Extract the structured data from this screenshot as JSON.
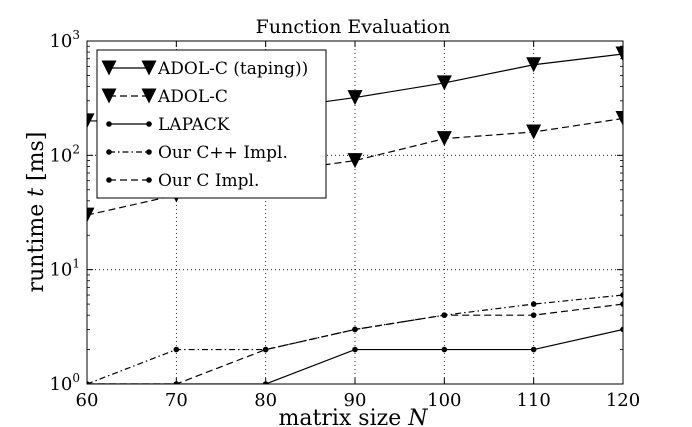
{
  "chart_data": {
    "type": "line",
    "title": "Function Evaluation",
    "xlabel": "matrix size N",
    "xlabel_main": "matrix size ",
    "xlabel_var": "N",
    "ylabel": "runtime t [ms]",
    "ylabel_pre": "runtime ",
    "ylabel_var": "t",
    "ylabel_post": " [ms]",
    "xlim": [
      60,
      120
    ],
    "ylim": [
      1,
      1000
    ],
    "yscale": "log",
    "grid": true,
    "legend_position": "top-left",
    "x": [
      60,
      70,
      80,
      90,
      100,
      110,
      120
    ],
    "x_ticks": [
      "60",
      "70",
      "80",
      "90",
      "100",
      "110",
      "120"
    ],
    "y_ticks": [
      {
        "base": "10",
        "exp": "0",
        "value": 1
      },
      {
        "base": "10",
        "exp": "1",
        "value": 10
      },
      {
        "base": "10",
        "exp": "2",
        "value": 100
      },
      {
        "base": "10",
        "exp": "3",
        "value": 1000
      }
    ],
    "series": [
      {
        "name": "ADOL-C (taping))",
        "marker": "triangle-down",
        "dash": "solid",
        "color": "#000000",
        "values": [
          200,
          200,
          250,
          320,
          430,
          620,
          770
        ]
      },
      {
        "name": "ADOL-C",
        "marker": "triangle-down",
        "dash": "dashed",
        "color": "#000000",
        "values": [
          30,
          45,
          70,
          90,
          140,
          160,
          210
        ]
      },
      {
        "name": "LAPACK",
        "marker": "dot",
        "dash": "solid",
        "color": "#000000",
        "values": [
          1,
          1,
          1,
          2,
          2,
          2,
          3
        ]
      },
      {
        "name": "Our C++ Impl.",
        "marker": "dot",
        "dash": "dashdot",
        "color": "#000000",
        "values": [
          1,
          2,
          2,
          3,
          4,
          5,
          6
        ]
      },
      {
        "name": "Our C Impl.",
        "marker": "dot",
        "dash": "dashed",
        "color": "#000000",
        "values": [
          1,
          1,
          2,
          3,
          4,
          4,
          5
        ]
      }
    ]
  }
}
